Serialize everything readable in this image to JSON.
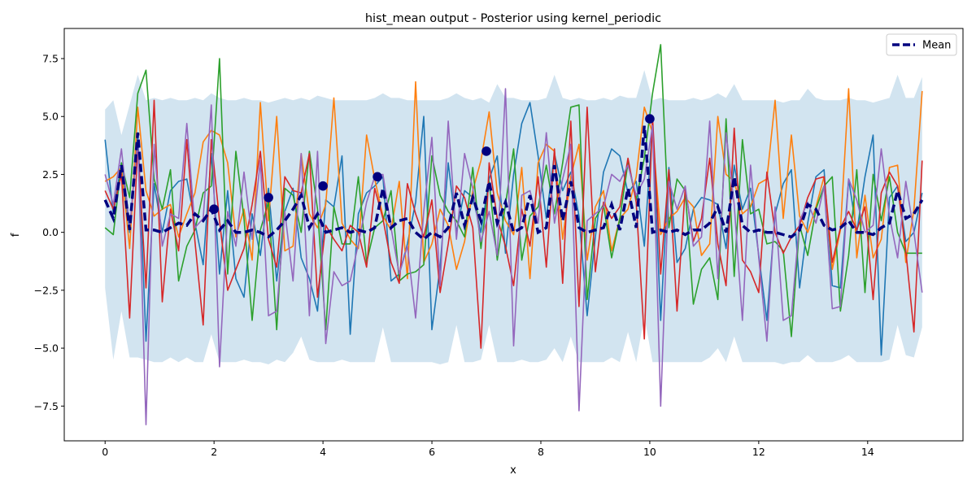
{
  "chart_data": {
    "type": "line",
    "title": "hist_mean output - Posterior using kernel_periodic",
    "xlabel": "x",
    "ylabel": "f",
    "xlim": [
      -0.75,
      15.75
    ],
    "ylim": [
      -9.0,
      8.8
    ],
    "xticks": [
      0,
      2,
      4,
      6,
      8,
      10,
      12,
      14
    ],
    "yticks": [
      -7.5,
      -5.0,
      -2.5,
      0.0,
      2.5,
      5.0,
      7.5
    ],
    "grid": false,
    "legend": {
      "position": "top-right",
      "entries": [
        "Mean"
      ]
    },
    "colors": {
      "band": "#1f77b4",
      "mean": "#00007f",
      "samples": [
        "#1f77b4",
        "#ff7f0e",
        "#2ca02c",
        "#d62728",
        "#9467bd"
      ]
    },
    "x": [
      0.0,
      0.15,
      0.3,
      0.45,
      0.6,
      0.75,
      0.9,
      1.05,
      1.2,
      1.35,
      1.5,
      1.65,
      1.8,
      1.95,
      2.1,
      2.25,
      2.4,
      2.55,
      2.7,
      2.85,
      3.0,
      3.15,
      3.3,
      3.45,
      3.6,
      3.75,
      3.9,
      4.05,
      4.2,
      4.35,
      4.5,
      4.65,
      4.8,
      4.95,
      5.1,
      5.25,
      5.4,
      5.55,
      5.7,
      5.85,
      6.0,
      6.15,
      6.3,
      6.45,
      6.6,
      6.75,
      6.9,
      7.05,
      7.2,
      7.35,
      7.5,
      7.65,
      7.8,
      7.95,
      8.1,
      8.25,
      8.4,
      8.55,
      8.7,
      8.85,
      9.0,
      9.15,
      9.3,
      9.45,
      9.6,
      9.75,
      9.9,
      10.05,
      10.2,
      10.35,
      10.5,
      10.65,
      10.8,
      10.95,
      11.1,
      11.25,
      11.4,
      11.55,
      11.7,
      11.85,
      12.0,
      12.15,
      12.3,
      12.45,
      12.6,
      12.75,
      12.9,
      13.05,
      13.2,
      13.35,
      13.5,
      13.65,
      13.8,
      13.95,
      14.1,
      14.25,
      14.4,
      14.55,
      14.7,
      14.85,
      15.0
    ],
    "mean": [
      1.4,
      0.6,
      2.9,
      0.1,
      4.3,
      0.1,
      0.1,
      0.0,
      0.2,
      0.4,
      0.3,
      0.8,
      0.5,
      1.0,
      0.1,
      0.5,
      0.0,
      0.0,
      0.1,
      0.0,
      -0.2,
      0.1,
      0.5,
      1.0,
      1.6,
      0.2,
      0.8,
      0.0,
      0.1,
      0.2,
      0.0,
      0.1,
      0.0,
      0.2,
      1.9,
      0.2,
      0.5,
      0.6,
      0.0,
      -0.3,
      0.0,
      -0.2,
      0.2,
      1.7,
      0.3,
      1.5,
      0.5,
      2.2,
      0.4,
      1.3,
      0.0,
      0.2,
      1.6,
      0.0,
      0.2,
      2.9,
      0.5,
      2.2,
      0.2,
      0.0,
      0.1,
      0.2,
      1.2,
      0.1,
      1.9,
      0.2,
      4.6,
      0.0,
      0.1,
      0.0,
      0.1,
      -0.1,
      0.1,
      0.1,
      0.4,
      1.1,
      0.0,
      2.4,
      0.3,
      0.0,
      0.1,
      0.0,
      0.0,
      -0.1,
      -0.2,
      0.1,
      1.2,
      1.0,
      0.3,
      0.1,
      0.2,
      0.5,
      0.0,
      0.0,
      -0.1,
      0.2,
      0.4,
      1.8,
      0.6,
      0.8,
      1.4
    ],
    "band": {
      "upper": [
        5.3,
        5.7,
        4.2,
        5.5,
        6.8,
        5.7,
        5.8,
        5.7,
        5.8,
        5.7,
        5.7,
        5.8,
        5.7,
        6.0,
        5.8,
        5.7,
        5.7,
        5.8,
        5.7,
        5.7,
        5.6,
        5.7,
        5.8,
        5.7,
        5.8,
        5.7,
        5.9,
        5.8,
        5.7,
        5.7,
        5.7,
        5.7,
        5.7,
        5.8,
        6.0,
        5.8,
        5.8,
        5.7,
        5.7,
        5.7,
        5.7,
        5.7,
        5.8,
        6.0,
        5.8,
        5.7,
        5.8,
        5.6,
        6.4,
        5.8,
        5.8,
        5.7,
        5.7,
        5.7,
        5.8,
        6.8,
        5.8,
        5.7,
        5.8,
        5.7,
        5.7,
        5.8,
        5.7,
        5.9,
        5.8,
        5.8,
        7.0,
        5.7,
        5.8,
        5.7,
        5.7,
        5.7,
        5.8,
        5.7,
        5.8,
        6.0,
        5.8,
        6.4,
        5.7,
        5.7,
        5.7,
        5.7,
        5.7,
        5.6,
        5.7,
        5.7,
        6.2,
        5.8,
        5.7,
        5.7,
        5.7,
        5.8,
        5.7,
        5.7,
        5.6,
        5.7,
        5.8,
        6.8,
        5.8,
        5.8,
        6.7
      ],
      "lower": [
        -2.4,
        -5.5,
        -3.4,
        -5.4,
        -5.4,
        -5.5,
        -5.6,
        -5.6,
        -5.4,
        -5.6,
        -5.4,
        -5.6,
        -5.6,
        -4.4,
        -5.6,
        -5.6,
        -5.6,
        -5.5,
        -5.6,
        -5.6,
        -5.7,
        -5.5,
        -5.6,
        -5.2,
        -4.5,
        -5.5,
        -5.6,
        -5.6,
        -5.6,
        -5.5,
        -5.6,
        -5.6,
        -5.6,
        -5.6,
        -4.1,
        -5.6,
        -5.6,
        -5.6,
        -5.6,
        -5.6,
        -5.6,
        -5.7,
        -5.6,
        -4.0,
        -5.6,
        -5.6,
        -5.5,
        -4.0,
        -5.6,
        -5.6,
        -5.6,
        -5.5,
        -5.6,
        -5.6,
        -5.5,
        -5.0,
        -5.6,
        -4.5,
        -5.6,
        -5.6,
        -5.6,
        -5.6,
        -5.4,
        -5.6,
        -4.3,
        -5.6,
        -3.6,
        -5.6,
        -5.6,
        -5.6,
        -5.6,
        -5.6,
        -5.6,
        -5.6,
        -5.4,
        -5.0,
        -5.6,
        -4.5,
        -5.6,
        -5.6,
        -5.6,
        -5.6,
        -5.6,
        -5.7,
        -5.6,
        -5.6,
        -5.3,
        -5.6,
        -5.6,
        -5.6,
        -5.5,
        -5.3,
        -5.6,
        -5.6,
        -5.6,
        -5.6,
        -5.5,
        -4.0,
        -5.3,
        -5.4,
        -4.1
      ]
    },
    "samples": [
      [
        4.0,
        0.8,
        3.0,
        0.0,
        4.3,
        -4.7,
        2.1,
        0.0,
        1.8,
        2.2,
        2.3,
        0.4,
        -1.4,
        3.4,
        -1.8,
        1.8,
        -2.0,
        -2.8,
        0.8,
        -1.0,
        1.9,
        -2.1,
        0.9,
        1.9,
        -1.1,
        -2.0,
        -3.4,
        1.4,
        1.1,
        3.3,
        -4.4,
        0.8,
        1.7,
        2.0,
        2.4,
        -2.1,
        -1.8,
        -0.5,
        1.3,
        5.0,
        -4.2,
        -1.5,
        3.0,
        0.0,
        1.8,
        1.5,
        0.0,
        2.3,
        3.3,
        -0.9,
        2.5,
        4.7,
        5.6,
        3.3,
        0.6,
        3.4,
        1.8,
        2.6,
        0.7,
        -3.6,
        -0.2,
        2.6,
        3.6,
        3.3,
        1.7,
        2.2,
        -0.6,
        4.7,
        -3.8,
        2.8,
        -1.3,
        -0.7,
        1.0,
        1.5,
        1.4,
        1.2,
        -0.7,
        2.9,
        1.0,
        1.9,
        -1.0,
        -3.8,
        0.8,
        2.1,
        2.7,
        -2.4,
        0.4,
        2.4,
        2.7,
        -2.3,
        -2.4,
        2.3,
        0.0,
        2.4,
        4.2,
        -5.3,
        1.5,
        2.0,
        -0.4,
        0.0,
        1.7
      ],
      [
        2.2,
        2.4,
        2.8,
        -0.7,
        5.4,
        1.8,
        0.7,
        1.0,
        1.2,
        -0.2,
        0.8,
        1.7,
        3.9,
        4.4,
        4.2,
        3.0,
        -0.2,
        1.0,
        -1.2,
        5.6,
        0.5,
        5.0,
        -0.8,
        -0.6,
        3.4,
        0.8,
        0.2,
        1.2,
        5.8,
        0.4,
        -0.3,
        -0.7,
        4.2,
        2.3,
        0.7,
        0.1,
        2.2,
        -2.0,
        6.5,
        -1.3,
        -0.5,
        1.0,
        0.3,
        -1.6,
        -0.4,
        1.8,
        3.1,
        5.2,
        1.7,
        0.5,
        -0.1,
        2.8,
        -2.0,
        3.0,
        3.8,
        3.5,
        -0.3,
        2.4,
        3.8,
        -1.2,
        1.1,
        1.8,
        -0.8,
        0.6,
        1.0,
        2.4,
        5.4,
        4.3,
        -0.1,
        0.6,
        0.9,
        1.5,
        1.1,
        -1.0,
        -0.5,
        5.0,
        2.5,
        2.2,
        0.8,
        1.1,
        2.1,
        2.3,
        5.7,
        0.6,
        4.2,
        0.7,
        0.0,
        1.1,
        2.4,
        -1.6,
        0.1,
        6.2,
        -1.1,
        1.6,
        -1.1,
        -0.3,
        2.8,
        2.9,
        -1.3,
        1.0,
        6.1
      ],
      [
        0.2,
        -0.1,
        3.0,
        1.5,
        6.0,
        7.0,
        2.3,
        1.0,
        2.7,
        -2.1,
        -0.6,
        0.1,
        1.7,
        2.0,
        7.5,
        -1.8,
        3.5,
        0.6,
        -3.8,
        0.1,
        1.3,
        -4.2,
        1.9,
        1.6,
        0.0,
        3.5,
        1.0,
        -4.2,
        1.1,
        -0.5,
        -0.5,
        2.4,
        -1.3,
        0.2,
        0.5,
        1.8,
        -2.1,
        -1.8,
        -1.7,
        -1.4,
        3.3,
        1.6,
        0.9,
        0.5,
        -0.2,
        2.8,
        -0.7,
        2.2,
        -1.2,
        1.2,
        3.6,
        -1.2,
        0.7,
        1.1,
        2.9,
        0.8,
        3.0,
        5.4,
        5.5,
        -2.9,
        0.6,
        1.2,
        -1.1,
        0.6,
        3.0,
        1.4,
        3.2,
        6.0,
        8.1,
        0.2,
        2.3,
        1.8,
        -3.1,
        -1.6,
        -1.1,
        -2.9,
        4.9,
        -1.9,
        4.0,
        0.8,
        1.0,
        -0.5,
        -0.4,
        -0.8,
        -4.5,
        0.3,
        -1.0,
        1.0,
        2.0,
        2.4,
        -3.4,
        -1.0,
        2.7,
        -2.6,
        2.5,
        0.5,
        2.4,
        0.0,
        -0.9,
        -0.9,
        -0.9
      ],
      [
        1.8,
        1.0,
        2.5,
        -3.7,
        3.8,
        -2.4,
        5.7,
        -3.0,
        1.0,
        -0.8,
        4.0,
        -0.4,
        -4.0,
        4.0,
        0.5,
        -2.5,
        -1.6,
        -0.7,
        1.2,
        3.5,
        -0.3,
        -1.5,
        2.4,
        1.8,
        1.7,
        3.4,
        -2.8,
        0.3,
        -0.3,
        -0.8,
        0.3,
        0.0,
        -1.5,
        1.9,
        0.6,
        -1.3,
        -2.2,
        2.1,
        0.8,
        -0.2,
        1.4,
        -2.6,
        -0.5,
        2.0,
        1.5,
        0.2,
        -5.0,
        3.0,
        0.6,
        -0.6,
        -2.3,
        1.0,
        -0.6,
        2.4,
        -1.5,
        3.6,
        -2.2,
        4.8,
        -3.2,
        5.4,
        -1.7,
        1.3,
        0.6,
        1.1,
        3.2,
        1.3,
        -4.6,
        5.0,
        -1.8,
        2.7,
        -3.4,
        1.9,
        -0.4,
        0.6,
        3.2,
        -0.5,
        -2.3,
        4.5,
        -1.2,
        -1.7,
        -2.6,
        2.6,
        0.0,
        -0.9,
        -0.2,
        0.3,
        1.5,
        2.3,
        2.4,
        -1.3,
        0.2,
        0.9,
        0.1,
        1.1,
        -2.9,
        1.7,
        2.6,
        2.0,
        -0.8,
        -4.3,
        3.1
      ],
      [
        2.5,
        1.2,
        3.6,
        0.2,
        4.0,
        -8.3,
        3.8,
        -0.6,
        0.8,
        0.6,
        4.7,
        0.2,
        0.6,
        5.5,
        -5.8,
        0.9,
        -0.6,
        2.6,
        -0.3,
        3.1,
        -3.6,
        -3.4,
        0.9,
        -2.1,
        3.4,
        -3.6,
        3.5,
        -4.8,
        -1.7,
        -2.3,
        -2.1,
        -0.5,
        1.3,
        2.4,
        2.5,
        0.2,
        -1.8,
        -0.6,
        -3.7,
        0.9,
        4.1,
        -2.3,
        4.8,
        -0.3,
        3.4,
        1.9,
        -0.4,
        0.9,
        -1.0,
        6.2,
        -4.9,
        1.6,
        1.8,
        0.4,
        4.3,
        0.4,
        2.3,
        3.8,
        -7.7,
        0.5,
        0.8,
        1.1,
        2.5,
        2.2,
        2.9,
        1.6,
        2.3,
        4.6,
        -7.5,
        2.2,
        1.0,
        2.0,
        -0.6,
        -0.2,
        4.8,
        -2.0,
        4.3,
        1.2,
        -3.8,
        2.9,
        -1.1,
        -4.7,
        1.1,
        -3.8,
        -3.6,
        0.5,
        1.3,
        0.4,
        2.0,
        -3.3,
        -3.2,
        2.3,
        1.4,
        0.0,
        0.3,
        3.6,
        0.7,
        -1.1,
        2.2,
        0.0,
        -2.6
      ]
    ],
    "observations": {
      "x": [
        2,
        3,
        4,
        5,
        7,
        10
      ],
      "y": [
        1.0,
        1.5,
        2.0,
        2.4,
        3.5,
        4.9
      ]
    }
  }
}
